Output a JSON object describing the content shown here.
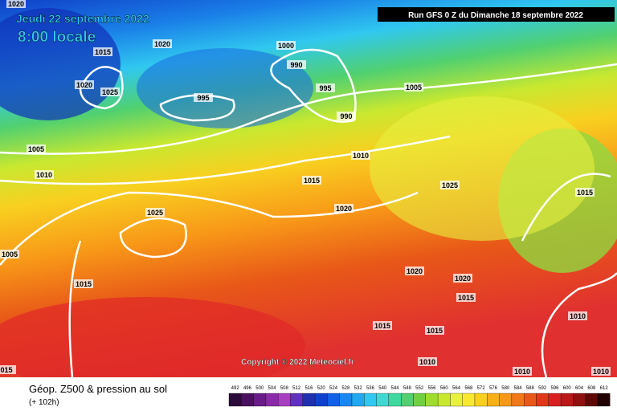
{
  "header": {
    "date": "Jeudi 22 septembre 2022",
    "time": "8:00 locale",
    "run": "Run GFS 0 Z du Dimanche 18 septembre 2022"
  },
  "copyright": "Copyright © 2022 Meteociel.fr",
  "isobars": [
    1020,
    1015,
    1020,
    1025,
    1020,
    995,
    1000,
    990,
    995,
    990,
    1005,
    1005,
    1010,
    1010,
    1015,
    1020,
    1025,
    1015,
    1025,
    1005,
    1015,
    1020,
    1020,
    1015,
    1010,
    1015,
    1015,
    1010,
    1010,
    1010,
    "015"
  ],
  "legend": {
    "title": "Géop. Z500 & pression au sol",
    "subtitle": "(+ 102h)",
    "scale": [
      492,
      496,
      500,
      504,
      508,
      512,
      516,
      520,
      524,
      528,
      532,
      536,
      540,
      544,
      548,
      552,
      556,
      560,
      564,
      568,
      572,
      576,
      580,
      584,
      588,
      592,
      596,
      600,
      604,
      608,
      612
    ],
    "colors": [
      "#2a0a3a",
      "#4b1060",
      "#6a1a8a",
      "#8a2aa8",
      "#a640c0",
      "#6030c0",
      "#2030b0",
      "#1040d0",
      "#1060e8",
      "#1888f0",
      "#20a8f0",
      "#30c8f0",
      "#40d8d0",
      "#40d8a0",
      "#50d070",
      "#70d040",
      "#a0dc30",
      "#c8e830",
      "#e8f040",
      "#f8e830",
      "#f8d020",
      "#f8b018",
      "#f89818",
      "#f07818",
      "#e85818",
      "#e03818",
      "#d82020",
      "#b81818",
      "#901010",
      "#600808",
      "#200000"
    ]
  }
}
